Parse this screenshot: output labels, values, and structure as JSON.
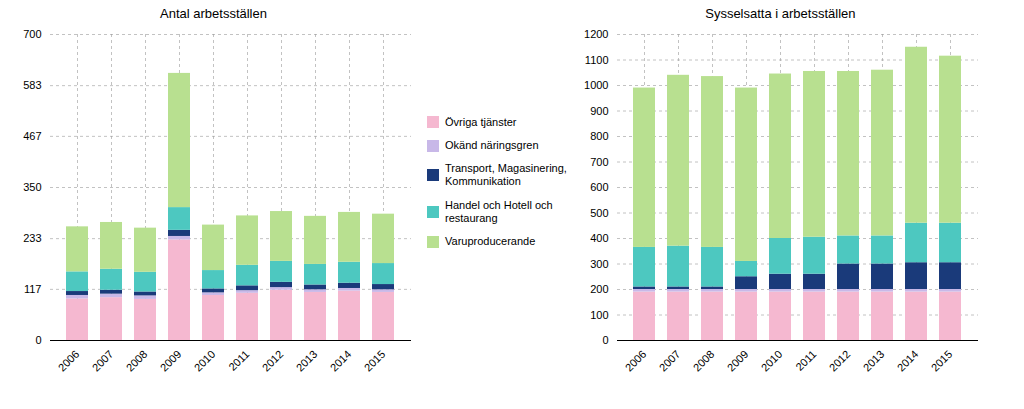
{
  "chart_data": [
    {
      "type": "bar",
      "stacked": true,
      "title": "Antal arbetsställen",
      "categories": [
        "2006",
        "2007",
        "2008",
        "2009",
        "2010",
        "2011",
        "2012",
        "2013",
        "2014",
        "2015"
      ],
      "series": [
        {
          "name": "Övriga tjänster",
          "color": "#f5b8d0",
          "values": [
            95,
            98,
            94,
            230,
            103,
            108,
            115,
            110,
            113,
            110
          ]
        },
        {
          "name": "Okänd näringsgren",
          "color": "#c8b8e8",
          "values": [
            8,
            8,
            8,
            8,
            6,
            6,
            6,
            6,
            6,
            6
          ]
        },
        {
          "name": "Transport, Magasinering,\nKommunikation",
          "color": "#1a3a7a",
          "values": [
            9,
            9,
            9,
            14,
            9,
            11,
            12,
            11,
            12,
            12
          ]
        },
        {
          "name": "Handel och Hotell och\nrestaurang",
          "color": "#4dc8c0",
          "values": [
            45,
            48,
            45,
            52,
            42,
            47,
            48,
            47,
            48,
            48
          ]
        },
        {
          "name": "Varuproducerande",
          "color": "#b8e090",
          "values": [
            103,
            107,
            101,
            307,
            104,
            113,
            114,
            110,
            114,
            113
          ]
        }
      ],
      "ylim": [
        0,
        700
      ],
      "yticks": [
        0,
        117,
        233,
        350,
        467,
        583,
        700
      ],
      "grid": true,
      "legend": "right"
    },
    {
      "type": "bar",
      "stacked": true,
      "title": "Sysselsatta i arbetsställen",
      "categories": [
        "2006",
        "2007",
        "2008",
        "2009",
        "2010",
        "2011",
        "2012",
        "2013",
        "2014",
        "2015"
      ],
      "series": [
        {
          "name": "Övriga tjänster",
          "color": "#f5b8d0",
          "values": [
            190,
            190,
            190,
            190,
            190,
            190,
            190,
            190,
            190,
            190
          ]
        },
        {
          "name": "Okänd näringsgren",
          "color": "#c8b8e8",
          "values": [
            10,
            10,
            10,
            10,
            10,
            10,
            10,
            10,
            10,
            10
          ]
        },
        {
          "name": "Transport, Magasinering,\nKommunikation",
          "color": "#1a3a7a",
          "values": [
            10,
            10,
            10,
            50,
            60,
            60,
            100,
            100,
            105,
            105
          ]
        },
        {
          "name": "Handel och Hotell och\nrestaurang",
          "color": "#4dc8c0",
          "values": [
            155,
            160,
            155,
            60,
            140,
            145,
            110,
            110,
            155,
            155
          ]
        },
        {
          "name": "Varuproducerande",
          "color": "#b8e090",
          "values": [
            625,
            670,
            670,
            680,
            645,
            650,
            645,
            650,
            690,
            655
          ]
        }
      ],
      "ylim": [
        0,
        1200
      ],
      "yticks": [
        0,
        100,
        200,
        300,
        400,
        500,
        600,
        700,
        800,
        900,
        1000,
        1100,
        1200
      ],
      "grid": true
    }
  ]
}
